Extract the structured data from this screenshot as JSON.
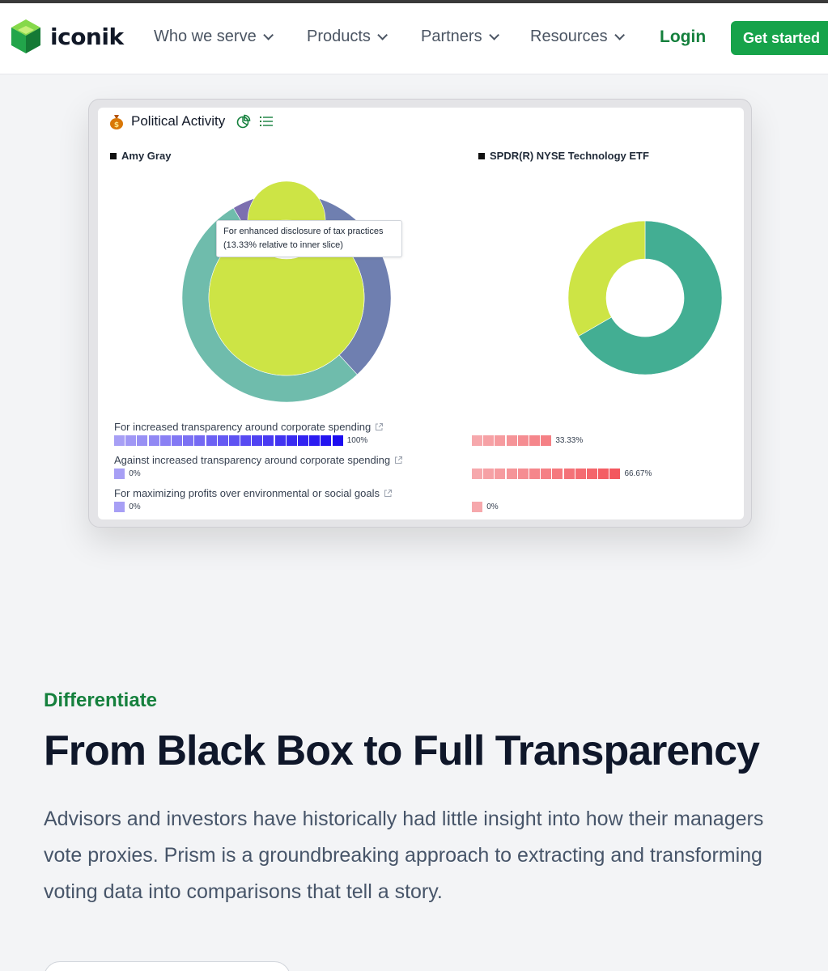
{
  "header": {
    "brand": "iconik",
    "nav": [
      {
        "label": "Who we serve"
      },
      {
        "label": "Products"
      },
      {
        "label": "Partners"
      },
      {
        "label": "Resources"
      }
    ],
    "login": "Login",
    "cta": "Get started",
    "accent": "#16a34a"
  },
  "panel": {
    "title": "Political Activity",
    "icons": [
      "moneybag-icon",
      "pie-chart-icon",
      "list-icon"
    ],
    "tooltip": "For enhanced disclosure of tax practices (13.33% relative to inner slice)"
  },
  "chart_data": [
    {
      "type": "pie",
      "title": "Amy Gray",
      "rings": [
        {
          "name": "outer",
          "slices": [
            {
              "value": 13.33,
              "color": "#7c6fb0"
            },
            {
              "value": 33.33,
              "color": "#6f7fb0"
            },
            {
              "value": 53.34,
              "color": "#6fbcac"
            }
          ]
        },
        {
          "name": "inner",
          "slices": [
            {
              "value": 100,
              "color": "#cde445"
            }
          ]
        }
      ]
    },
    {
      "type": "pie",
      "title": "SPDR(R) NYSE Technology ETF",
      "rings": [
        {
          "name": "outer",
          "slices": [
            {
              "value": 66.67,
              "color": "#43ae93"
            },
            {
              "value": 33.33,
              "color": "#cde445"
            }
          ]
        }
      ]
    }
  ],
  "votes": [
    {
      "label": "For increased transparency around corporate spending",
      "left_pct": "100%",
      "left_value": 100,
      "right_pct": "33.33%",
      "right_value": 33.33
    },
    {
      "label": "Against increased transparency around corporate spending",
      "left_pct": "0%",
      "left_value": 0,
      "right_pct": "66.67%",
      "right_value": 66.67
    },
    {
      "label": "For maximizing profits over environmental or social goals",
      "left_pct": "0%",
      "left_value": 0,
      "right_pct": "0%",
      "right_value": 0
    }
  ],
  "section": {
    "eyebrow": "Differentiate",
    "headline": "From Black Box to Full Transparency",
    "body": "Advisors and investors have historically had little insight into how their managers vote proxies. Prism is a groundbreaking approach to extracting and transforming voting data into comparisons that tell a story."
  }
}
